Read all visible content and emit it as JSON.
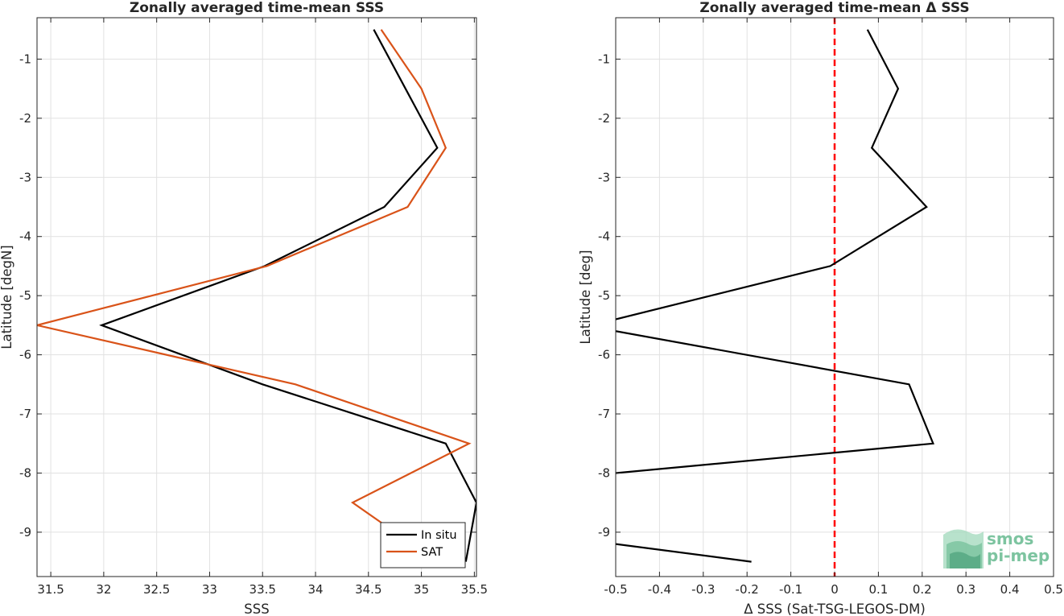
{
  "chart_data": [
    {
      "type": "line",
      "title": "Zonally averaged time-mean SSS",
      "xlabel": "SSS",
      "ylabel": "Latitude [degN]",
      "xlim": [
        31.37,
        35.52
      ],
      "ylim": [
        -9.75,
        -0.3
      ],
      "xticks": [
        31.5,
        32,
        32.5,
        33,
        33.5,
        34,
        34.5,
        35,
        35.5
      ],
      "yticks": [
        -9,
        -8,
        -7,
        -6,
        -5,
        -4,
        -3,
        -2,
        -1
      ],
      "grid": true,
      "legend": "bottom-right",
      "series": [
        {
          "name": "In situ",
          "color": "#000000",
          "points": [
            [
              34.55,
              -0.5
            ],
            [
              35.15,
              -2.5
            ],
            [
              34.65,
              -3.5
            ],
            [
              33.52,
              -4.5
            ],
            [
              31.98,
              -5.5
            ],
            [
              33.5,
              -6.5
            ],
            [
              35.23,
              -7.5
            ],
            [
              35.52,
              -8.5
            ],
            [
              35.42,
              -9.5
            ]
          ]
        },
        {
          "name": "SAT",
          "color": "#d95319",
          "points": [
            [
              34.62,
              -0.5
            ],
            [
              35.0,
              -1.5
            ],
            [
              35.23,
              -2.5
            ],
            [
              34.87,
              -3.5
            ],
            [
              33.54,
              -4.5
            ],
            [
              31.37,
              -5.5
            ],
            [
              33.81,
              -6.5
            ],
            [
              35.45,
              -7.5
            ],
            [
              34.35,
              -8.5
            ],
            [
              34.75,
              -9.0
            ]
          ]
        }
      ]
    },
    {
      "type": "line",
      "title": "Zonally averaged time-mean Δ SSS",
      "xlabel": "Δ SSS (Sat-TSG-LEGOS-DM)",
      "ylabel": "Latitude [deg]",
      "xlim": [
        -0.5,
        0.5
      ],
      "ylim": [
        -9.75,
        -0.3
      ],
      "xticks": [
        -0.5,
        -0.4,
        -0.3,
        -0.2,
        -0.1,
        0,
        0.1,
        0.2,
        0.3,
        0.4,
        0.5
      ],
      "yticks": [
        -9,
        -8,
        -7,
        -6,
        -5,
        -4,
        -3,
        -2,
        -1
      ],
      "grid": true,
      "reference_line": {
        "x": 0,
        "color": "#ff0000",
        "style": "dashed"
      },
      "series": [
        {
          "color": "#000000",
          "segments": [
            [
              [
                0.075,
                -0.5
              ],
              [
                0.145,
                -1.5
              ],
              [
                0.085,
                -2.5
              ],
              [
                0.21,
                -3.5
              ],
              [
                -0.01,
                -4.5
              ],
              [
                -0.5,
                -5.4
              ]
            ],
            [
              [
                -0.5,
                -5.6
              ],
              [
                0.17,
                -6.5
              ],
              [
                0.225,
                -7.5
              ],
              [
                -0.5,
                -8.0
              ]
            ],
            [
              [
                -0.5,
                -9.2
              ],
              [
                -0.19,
                -9.5
              ]
            ]
          ]
        }
      ]
    }
  ],
  "watermark": {
    "line1": "smos",
    "line2": "pi-mep",
    "color": "#7dc4a0"
  }
}
